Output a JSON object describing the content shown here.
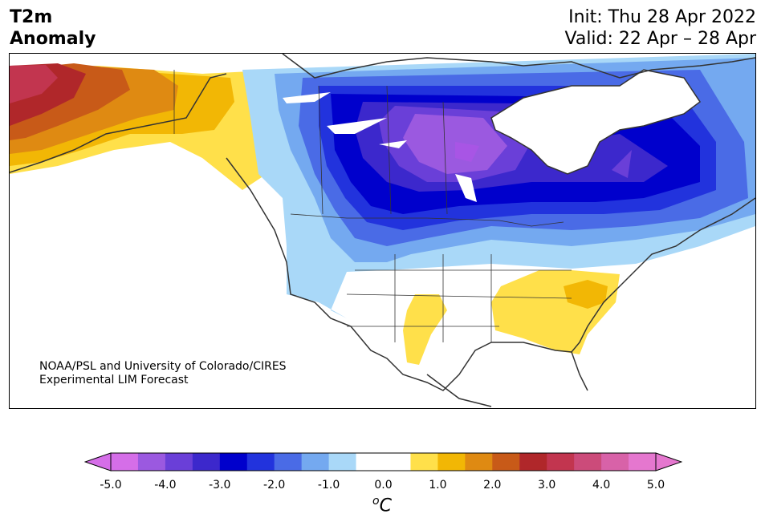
{
  "header": {
    "title_line1": "T2m",
    "title_line2": "Anomaly",
    "init": "Init: Thu 28 Apr 2022",
    "valid": "Valid: 22 Apr – 28 Apr"
  },
  "credit": {
    "line1": "NOAA/PSL and University of Colorado/CIRES",
    "line2": "Experimental LIM Forecast"
  },
  "colorbar": {
    "unit_base": "o",
    "unit_letter": "C",
    "tick_labels": [
      "-5.0",
      "-4.0",
      "-3.0",
      "-2.0",
      "-1.0",
      "0.0",
      "1.0",
      "2.0",
      "3.0",
      "4.0",
      "5.0"
    ],
    "colors": [
      "#d56ee8",
      "#9b59e0",
      "#6a3fd8",
      "#3c28cc",
      "#0000cc",
      "#2233dd",
      "#4a6be6",
      "#74a9f0",
      "#a9d8f8",
      "#ffffff",
      "#ffffff",
      "#ffe04a",
      "#f2b705",
      "#df8a12",
      "#c85a18",
      "#b0272a",
      "#c2354f",
      "#cc4b7a",
      "#d862a8",
      "#e577cf"
    ],
    "under_color": "#d56ee8",
    "over_color": "#e577cf"
  },
  "map": {
    "region": "North America",
    "anomaly_summary": {
      "cold_core": "Central Canada / Manitoba–Ontario",
      "warm_core": "Alaska",
      "warm_secondary": "Southeastern United States"
    }
  }
}
